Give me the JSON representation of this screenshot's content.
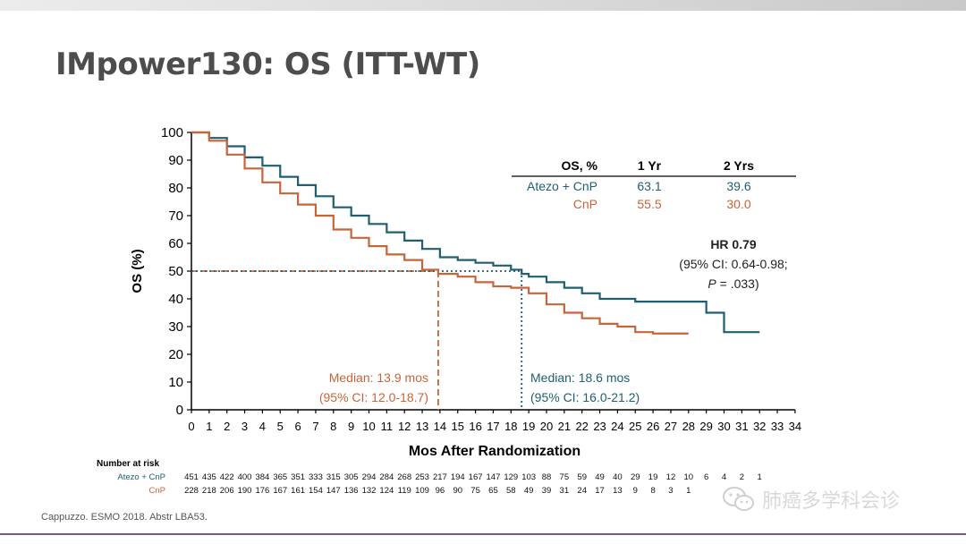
{
  "title": "IMpower130: OS (ITT-WT)",
  "footer": "Cappuzzo. ESMO 2018. Abstr LBA53.",
  "watermark": "肺癌多学科会诊",
  "colors": {
    "atezo": "#1f5f6f",
    "cnp": "#c8643a",
    "axis": "#000000",
    "title": "#4d4d4d"
  },
  "table": {
    "headers": [
      "OS, %",
      "1 Yr",
      "2 Yrs"
    ],
    "rows": [
      {
        "label": "Atezo + CnP",
        "yr1": "63.1",
        "yr2": "39.6",
        "color": "#1f5f6f"
      },
      {
        "label": "CnP",
        "yr1": "55.5",
        "yr2": "30.0",
        "color": "#c8643a"
      }
    ]
  },
  "hr": {
    "line1": "HR 0.79",
    "line2": "(95% CI: 0.64-0.98;",
    "p_label": "P",
    "p_value": " = .033)"
  },
  "median_cnp": {
    "line1": "Median: 13.9 mos",
    "line2": "(95% CI: 12.0-18.7)"
  },
  "median_atezo": {
    "line1": "Median: 18.6 mos",
    "line2": "(95% CI: 16.0-21.2)"
  },
  "risk": {
    "header": "Number at risk",
    "rows": [
      {
        "label": "Atezo + CnP",
        "color": "#1f5f6f",
        "values": [
          "451",
          "435",
          "422",
          "400",
          "384",
          "365",
          "351",
          "333",
          "315",
          "305",
          "294",
          "284",
          "268",
          "253",
          "217",
          "194",
          "167",
          "147",
          "129",
          "103",
          "88",
          "75",
          "59",
          "49",
          "40",
          "29",
          "19",
          "12",
          "10",
          "6",
          "4",
          "2",
          "1"
        ]
      },
      {
        "label": "CnP",
        "color": "#c8643a",
        "values": [
          "228",
          "218",
          "206",
          "190",
          "176",
          "167",
          "161",
          "154",
          "147",
          "136",
          "132",
          "124",
          "119",
          "109",
          "96",
          "90",
          "75",
          "65",
          "58",
          "49",
          "39",
          "31",
          "24",
          "17",
          "13",
          "9",
          "8",
          "3",
          "1"
        ]
      }
    ]
  },
  "chart_data": {
    "type": "line",
    "xlabel": "Mos After Randomization",
    "ylabel": "OS (%)",
    "xlim": [
      0,
      34
    ],
    "ylim": [
      0,
      100
    ],
    "xticks": [
      "0",
      "1",
      "2",
      "3",
      "4",
      "5",
      "6",
      "7",
      "8",
      "9",
      "10",
      "11",
      "12",
      "13",
      "14",
      "15",
      "16",
      "17",
      "18",
      "19",
      "20",
      "21",
      "22",
      "23",
      "24",
      "25",
      "26",
      "27",
      "28",
      "29",
      "30",
      "31",
      "32",
      "33",
      "34"
    ],
    "yticks": [
      "0",
      "10",
      "20",
      "30",
      "40",
      "50",
      "60",
      "70",
      "80",
      "90",
      "100"
    ],
    "series": [
      {
        "name": "Atezo + CnP",
        "color": "#1f5f6f",
        "step": true,
        "points": [
          [
            0,
            100
          ],
          [
            1,
            98
          ],
          [
            2,
            95
          ],
          [
            3,
            91
          ],
          [
            4,
            88
          ],
          [
            5,
            84
          ],
          [
            6,
            81
          ],
          [
            7,
            77
          ],
          [
            8,
            73
          ],
          [
            9,
            70
          ],
          [
            10,
            67
          ],
          [
            11,
            64
          ],
          [
            12,
            61
          ],
          [
            13,
            58
          ],
          [
            14,
            55
          ],
          [
            15,
            54
          ],
          [
            16,
            53
          ],
          [
            17,
            52
          ],
          [
            18,
            50.5
          ],
          [
            18.6,
            49
          ],
          [
            19,
            48
          ],
          [
            20,
            46
          ],
          [
            21,
            44
          ],
          [
            22,
            42
          ],
          [
            23,
            40
          ],
          [
            24,
            40
          ],
          [
            25,
            39
          ],
          [
            26,
            39
          ],
          [
            27,
            39
          ],
          [
            28,
            39
          ],
          [
            29,
            35
          ],
          [
            30,
            28
          ],
          [
            31,
            28
          ],
          [
            32,
            28
          ]
        ]
      },
      {
        "name": "CnP",
        "color": "#c8643a",
        "step": true,
        "points": [
          [
            0,
            100
          ],
          [
            1,
            97
          ],
          [
            2,
            92
          ],
          [
            3,
            87
          ],
          [
            4,
            82
          ],
          [
            5,
            78
          ],
          [
            6,
            74
          ],
          [
            7,
            70
          ],
          [
            8,
            65
          ],
          [
            9,
            62
          ],
          [
            10,
            59
          ],
          [
            11,
            56
          ],
          [
            12,
            54
          ],
          [
            13,
            50.5
          ],
          [
            13.9,
            49
          ],
          [
            14,
            49
          ],
          [
            15,
            48
          ],
          [
            16,
            46
          ],
          [
            17,
            44.5
          ],
          [
            18,
            44
          ],
          [
            19,
            42
          ],
          [
            20,
            38
          ],
          [
            21,
            35
          ],
          [
            22,
            33
          ],
          [
            23,
            31
          ],
          [
            24,
            30
          ],
          [
            25,
            28
          ],
          [
            26,
            27.5
          ],
          [
            27,
            27.5
          ],
          [
            28,
            27.5
          ]
        ]
      }
    ],
    "medians": [
      {
        "series": "CnP",
        "x": 13.9,
        "y": 50,
        "color": "#c8643a",
        "style": "dashed"
      },
      {
        "series": "Atezo + CnP",
        "x": 18.6,
        "y": 50,
        "color": "#1f5f6f",
        "style": "dotted"
      }
    ]
  }
}
